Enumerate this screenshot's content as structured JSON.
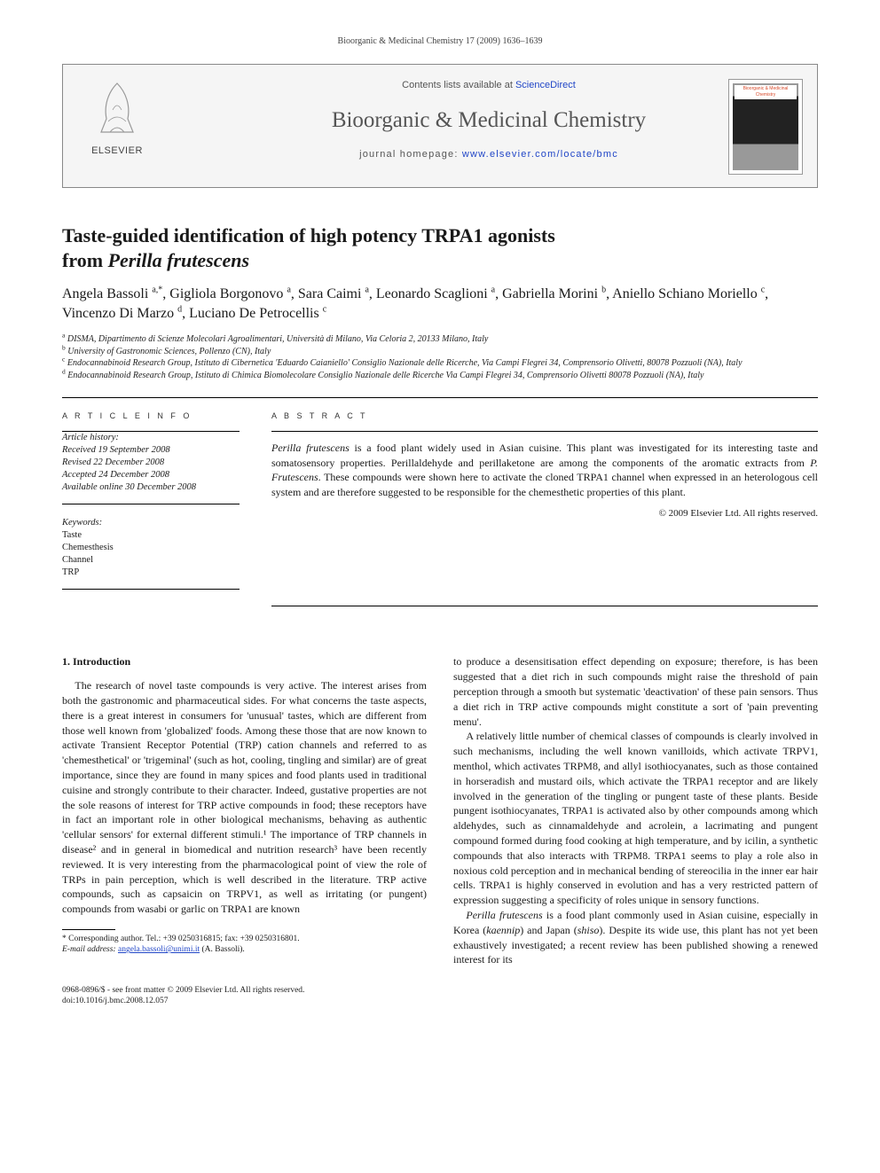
{
  "header_line": "Bioorganic & Medicinal Chemistry 17 (2009) 1636–1639",
  "journal_box": {
    "contents_prefix": "Contents lists available at ",
    "contents_link": "ScienceDirect",
    "journal_name": "Bioorganic & Medicinal Chemistry",
    "homepage_prefix": "journal homepage: ",
    "homepage_url": "www.elsevier.com/locate/bmc",
    "publisher": "ELSEVIER",
    "cover_label": "Bioorganic & Medicinal Chemistry"
  },
  "title": {
    "line1": "Taste-guided identification of high potency TRPA1 agonists",
    "line2_prefix": "from ",
    "line2_ital": "Perilla frutescens"
  },
  "authors_html": "Angela Bassoli <sup>a,*</sup>, Gigliola Borgonovo <sup>a</sup>, Sara Caimi <sup>a</sup>, Leonardo Scaglioni <sup>a</sup>, Gabriella Morini <sup>b</sup>, Aniello Schiano Moriello <sup>c</sup>, Vincenzo Di Marzo <sup>d</sup>, Luciano De Petrocellis <sup>c</sup>",
  "affiliations": [
    {
      "sup": "a",
      "text": "DISMA, Dipartimento di Scienze Molecolari Agroalimentari, Università di Milano, Via Celoria 2, 20133 Milano, Italy"
    },
    {
      "sup": "b",
      "text": "University of Gastronomic Sciences, Pollenzo (CN), Italy"
    },
    {
      "sup": "c",
      "text": "Endocannabinoid Research Group, Istituto di Cibernetica 'Eduardo Caianiello' Consiglio Nazionale delle Ricerche, Via Campi Flegrei 34, Comprensorio Olivetti, 80078 Pozzuoli (NA), Italy"
    },
    {
      "sup": "d",
      "text": "Endocannabinoid Research Group, Istituto di Chimica Biomolecolare Consiglio Nazionale delle Ricerche Via Campi Flegrei 34, Comprensorio Olivetti 80078 Pozzuoli (NA), Italy"
    }
  ],
  "info": {
    "article_info_label": "A R T I C L E   I N F O",
    "abstract_label": "A B S T R A C T",
    "history_label": "Article history:",
    "history": [
      "Received 19 September 2008",
      "Revised 22 December 2008",
      "Accepted 24 December 2008",
      "Available online 30 December 2008"
    ],
    "keywords_label": "Keywords:",
    "keywords": [
      "Taste",
      "Chemesthesis",
      "Channel",
      "TRP"
    ]
  },
  "abstract": {
    "text_pre_ital1": "",
    "ital1": "Perilla frutescens",
    "mid1": " is a food plant widely used in Asian cuisine. This plant was investigated for its interesting taste and somatosensory properties. Perillaldehyde and perillaketone are among the components of the aromatic extracts from ",
    "ital2": "P. Frutescens",
    "mid2": ". These compounds were shown here to activate the cloned TRPA1 channel when expressed in an heterologous cell system and are therefore suggested to be responsible for the chemesthetic properties of this plant.",
    "copyright": "© 2009 Elsevier Ltd. All rights reserved."
  },
  "body": {
    "heading1": "1. Introduction",
    "col1_para1": "The research of novel taste compounds is very active. The interest arises from both the gastronomic and pharmaceutical sides. For what concerns the taste aspects, there is a great interest in consumers for 'unusual' tastes, which are different from those well known from 'globalized' foods. Among these those that are now known to activate Transient Receptor Potential (TRP) cation channels and referred to as 'chemesthetical' or 'trigeminal' (such as hot, cooling, tingling and similar) are of great importance, since they are found in many spices and food plants used in traditional cuisine and strongly contribute to their character. Indeed, gustative properties are not the sole reasons of interest for TRP active compounds in food; these receptors have in fact an important role in other biological mechanisms, behaving as authentic 'cellular sensors' for external different stimuli.¹ The importance of TRP channels in disease² and in general in biomedical and nutrition research³ have been recently reviewed. It is very interesting from the pharmacological point of view the role of TRPs in pain perception, which is well described in the literature. TRP active compounds, such as capsaicin on TRPV1, as well as irritating (or pungent) compounds from wasabi or garlic on TRPA1 are known",
    "col2_para1": "to produce a desensitisation effect depending on exposure; therefore, is has been suggested that a diet rich in such compounds might raise the threshold of pain perception through a smooth but systematic 'deactivation' of these pain sensors. Thus a diet rich in TRP active compounds might constitute a sort of 'pain preventing menu'.",
    "col2_para2": "A relatively little number of chemical classes of compounds is clearly involved in such mechanisms, including the well known vanilloids, which activate TRPV1, menthol, which activates TRPM8, and allyl isothiocyanates, such as those contained in horseradish and mustard oils, which activate the TRPA1 receptor and are likely involved in the generation of the tingling or pungent taste of these plants. Beside pungent isothiocyanates, TRPA1 is activated also by other compounds among which aldehydes, such as cinnamaldehyde and acrolein, a lacrimating and pungent compound formed during food cooking at high temperature, and by icilin, a synthetic compounds that also interacts with TRPM8. TRPA1 seems to play a role also in noxious cold perception and in mechanical bending of stereocilia in the inner ear hair cells. TRPA1 is highly conserved in evolution and has a very restricted pattern of expression suggesting a specificity of roles unique in sensory functions.",
    "col2_para3_pre": "",
    "col2_para3_ital": "Perilla frutescens",
    "col2_para3_mid": " is a food plant commonly used in Asian cuisine, especially in Korea (",
    "col2_para3_ital2": "kaennip",
    "col2_para3_mid2": ") and Japan (",
    "col2_para3_ital3": "shiso",
    "col2_para3_post": "). Despite its wide use, this plant has not yet been exhaustively investigated; a recent review has been published showing a renewed interest for its"
  },
  "footnote": {
    "corr": "* Corresponding author. Tel.: +39 0250316815; fax: +39 0250316801.",
    "email_label": "E-mail address:",
    "email": "angela.bassoli@unimi.it",
    "email_post": " (A. Bassoli)."
  },
  "bottom": {
    "line1": "0968-0896/$ - see front matter © 2009 Elsevier Ltd. All rights reserved.",
    "line2": "doi:10.1016/j.bmc.2008.12.057"
  }
}
